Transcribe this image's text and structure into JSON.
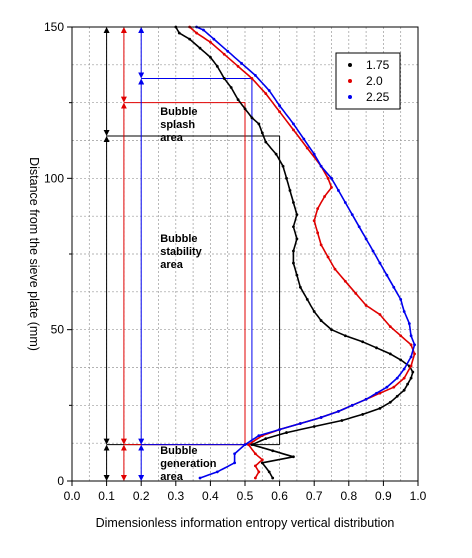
{
  "chart_data": {
    "type": "line",
    "xlabel": "Dimensionless information entropy vertical distribution",
    "ylabel": "Distance from the sieve plate (mm)",
    "xlim": [
      0.0,
      1.0
    ],
    "ylim": [
      0,
      150
    ],
    "x_ticks": [
      "0.0",
      "0.1",
      "0.2",
      "0.3",
      "0.4",
      "0.5",
      "0.6",
      "0.7",
      "0.8",
      "0.9",
      "1.0"
    ],
    "y_ticks": [
      "0",
      "50",
      "100",
      "150"
    ],
    "grid": true,
    "legend_position": "top-right",
    "series": [
      {
        "name": "1.75",
        "color": "#000000",
        "points": [
          [
            0.58,
            1
          ],
          [
            0.57,
            3
          ],
          [
            0.55,
            6
          ],
          [
            0.64,
            8
          ],
          [
            0.58,
            10
          ],
          [
            0.52,
            12
          ],
          [
            0.56,
            14
          ],
          [
            0.62,
            16
          ],
          [
            0.7,
            18
          ],
          [
            0.78,
            20
          ],
          [
            0.84,
            22
          ],
          [
            0.89,
            24
          ],
          [
            0.92,
            26
          ],
          [
            0.94,
            28
          ],
          [
            0.96,
            30
          ],
          [
            0.97,
            32
          ],
          [
            0.98,
            34
          ],
          [
            0.985,
            36
          ],
          [
            0.975,
            38
          ],
          [
            0.95,
            40
          ],
          [
            0.92,
            42
          ],
          [
            0.88,
            44
          ],
          [
            0.84,
            46
          ],
          [
            0.79,
            48
          ],
          [
            0.75,
            50
          ],
          [
            0.72,
            53
          ],
          [
            0.7,
            56
          ],
          [
            0.68,
            60
          ],
          [
            0.66,
            64
          ],
          [
            0.65,
            68
          ],
          [
            0.64,
            72
          ],
          [
            0.64,
            76
          ],
          [
            0.65,
            80
          ],
          [
            0.64,
            84
          ],
          [
            0.65,
            88
          ],
          [
            0.64,
            92
          ],
          [
            0.63,
            96
          ],
          [
            0.62,
            100
          ],
          [
            0.61,
            104
          ],
          [
            0.59,
            108
          ],
          [
            0.56,
            112
          ],
          [
            0.55,
            115
          ],
          [
            0.54,
            118
          ],
          [
            0.52,
            120
          ],
          [
            0.5,
            123
          ],
          [
            0.48,
            126
          ],
          [
            0.46,
            130
          ],
          [
            0.44,
            133
          ],
          [
            0.42,
            137
          ],
          [
            0.4,
            140
          ],
          [
            0.37,
            143
          ],
          [
            0.34,
            146
          ],
          [
            0.31,
            148
          ],
          [
            0.3,
            150
          ]
        ]
      },
      {
        "name": "2.0",
        "color": "#e00000",
        "points": [
          [
            0.53,
            1
          ],
          [
            0.54,
            3
          ],
          [
            0.53,
            5
          ],
          [
            0.55,
            7
          ],
          [
            0.53,
            9
          ],
          [
            0.51,
            12
          ],
          [
            0.55,
            15
          ],
          [
            0.6,
            17
          ],
          [
            0.66,
            19
          ],
          [
            0.72,
            21
          ],
          [
            0.77,
            23
          ],
          [
            0.81,
            25
          ],
          [
            0.85,
            27
          ],
          [
            0.89,
            29
          ],
          [
            0.93,
            31
          ],
          [
            0.96,
            34
          ],
          [
            0.98,
            38
          ],
          [
            0.99,
            42
          ],
          [
            0.98,
            45
          ],
          [
            0.95,
            48
          ],
          [
            0.92,
            51
          ],
          [
            0.89,
            55
          ],
          [
            0.85,
            58
          ],
          [
            0.82,
            62
          ],
          [
            0.79,
            66
          ],
          [
            0.76,
            70
          ],
          [
            0.74,
            74
          ],
          [
            0.72,
            78
          ],
          [
            0.71,
            82
          ],
          [
            0.7,
            86
          ],
          [
            0.71,
            90
          ],
          [
            0.73,
            94
          ],
          [
            0.75,
            97
          ],
          [
            0.74,
            100
          ],
          [
            0.72,
            104
          ],
          [
            0.68,
            110
          ],
          [
            0.64,
            116
          ],
          [
            0.6,
            122
          ],
          [
            0.56,
            128
          ],
          [
            0.52,
            133
          ],
          [
            0.48,
            137
          ],
          [
            0.44,
            141
          ],
          [
            0.4,
            145
          ],
          [
            0.36,
            148
          ],
          [
            0.34,
            150
          ]
        ]
      },
      {
        "name": "2.25",
        "color": "#0000ee",
        "points": [
          [
            0.37,
            1
          ],
          [
            0.42,
            3
          ],
          [
            0.47,
            6
          ],
          [
            0.47,
            9
          ],
          [
            0.5,
            12
          ],
          [
            0.54,
            15
          ],
          [
            0.6,
            17
          ],
          [
            0.66,
            19
          ],
          [
            0.72,
            21
          ],
          [
            0.77,
            23
          ],
          [
            0.81,
            25
          ],
          [
            0.85,
            27
          ],
          [
            0.88,
            29
          ],
          [
            0.91,
            31
          ],
          [
            0.94,
            34
          ],
          [
            0.96,
            37
          ],
          [
            0.98,
            41
          ],
          [
            0.99,
            45
          ],
          [
            0.98,
            48
          ],
          [
            0.975,
            52
          ],
          [
            0.96,
            56
          ],
          [
            0.95,
            60
          ],
          [
            0.93,
            64
          ],
          [
            0.91,
            68
          ],
          [
            0.89,
            72
          ],
          [
            0.87,
            76
          ],
          [
            0.85,
            80
          ],
          [
            0.83,
            84
          ],
          [
            0.81,
            88
          ],
          [
            0.79,
            92
          ],
          [
            0.77,
            96
          ],
          [
            0.75,
            100
          ],
          [
            0.72,
            104
          ],
          [
            0.7,
            108
          ],
          [
            0.67,
            113
          ],
          [
            0.64,
            118
          ],
          [
            0.6,
            124
          ],
          [
            0.57,
            129
          ],
          [
            0.53,
            134
          ],
          [
            0.49,
            138
          ],
          [
            0.45,
            142
          ],
          [
            0.41,
            146
          ],
          [
            0.38,
            149
          ],
          [
            0.36,
            150
          ]
        ]
      }
    ],
    "annotations": [
      {
        "text": "Bubble\nsplash\narea"
      },
      {
        "text": "Bubble\nstability\narea"
      },
      {
        "text": "Bubble\ngeneration\narea"
      }
    ],
    "region_markers": {
      "black": {
        "x": 0.1,
        "boundaries": [
          0,
          12,
          114,
          150
        ],
        "right_edge_x": 0.6
      },
      "red": {
        "x": 0.15,
        "boundaries": [
          0,
          12,
          125,
          150
        ],
        "right_edge_x": 0.5
      },
      "blue": {
        "x": 0.2,
        "boundaries": [
          0,
          12,
          133,
          150
        ],
        "right_edge_x": 0.52
      }
    }
  }
}
